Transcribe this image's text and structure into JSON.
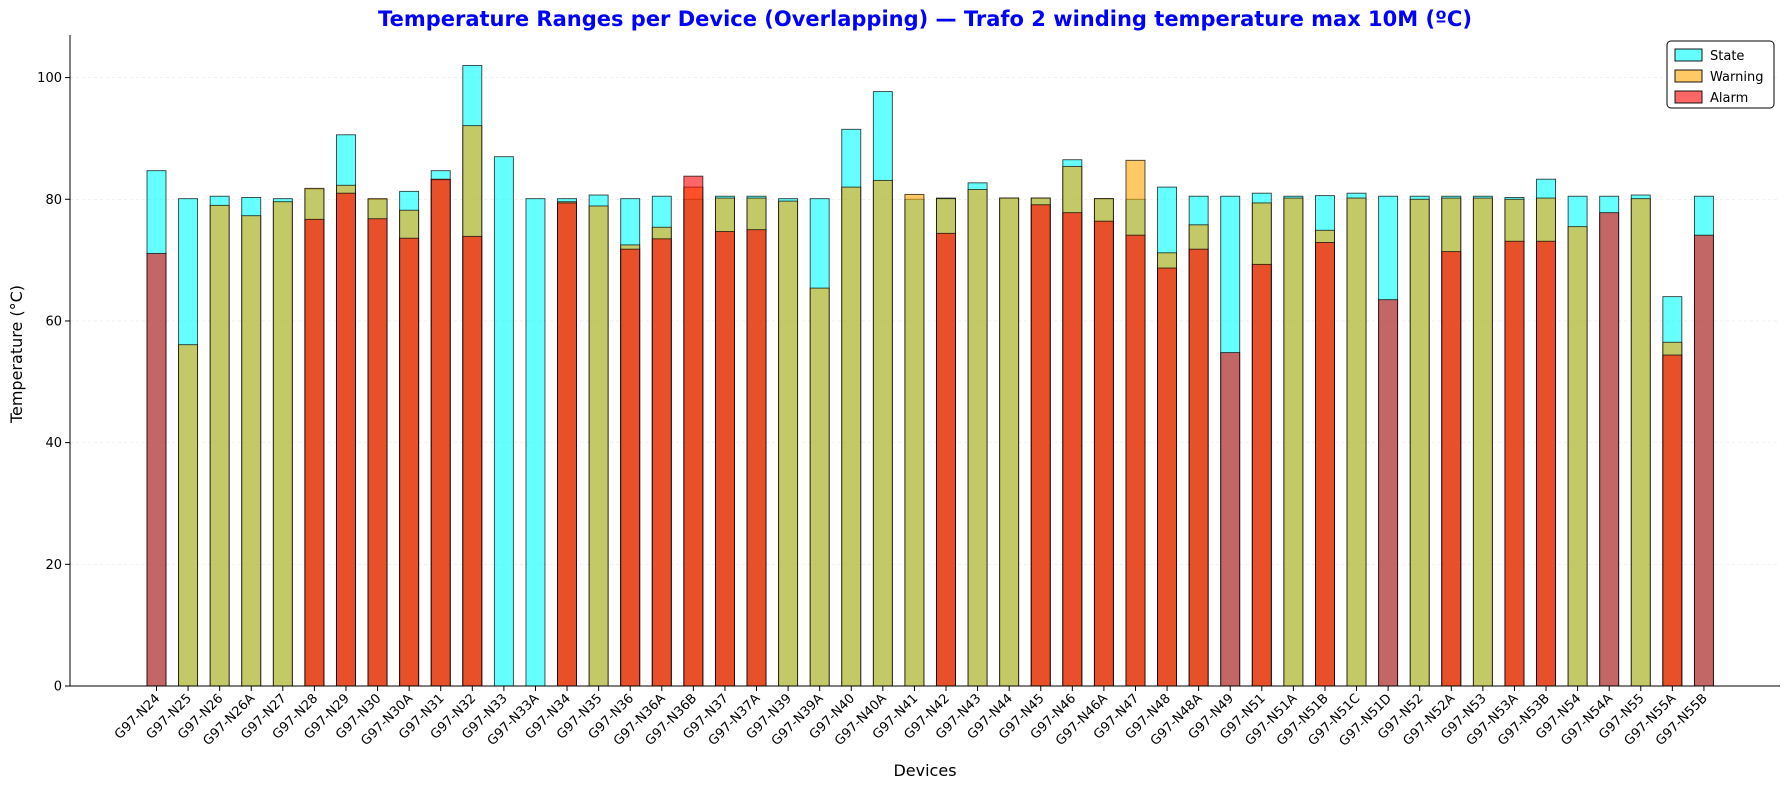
{
  "chart_data": {
    "type": "bar",
    "title": "Temperature Ranges per Device (Overlapping) — Trafo 2 winding temperature max 10M (ºC)",
    "xlabel": "Devices",
    "ylabel": "Temperature (°C)",
    "ylim": [
      0,
      107
    ],
    "yticks": [
      0,
      20,
      40,
      60,
      80,
      100
    ],
    "grid": "y-faint",
    "legend_position": "top-right",
    "categories": [
      "G97-N24",
      "G97-N25",
      "G97-N26",
      "G97-N26A",
      "G97-N27",
      "G97-N28",
      "G97-N29",
      "G97-N30",
      "G97-N30A",
      "G97-N31",
      "G97-N32",
      "G97-N33",
      "G97-N33A",
      "G97-N34",
      "G97-N35",
      "G97-N36",
      "G97-N36A",
      "G97-N36B",
      "G97-N37",
      "G97-N37A",
      "G97-N39",
      "G97-N39A",
      "G97-N40",
      "G97-N40A",
      "G97-N41",
      "G97-N42",
      "G97-N43",
      "G97-N44",
      "G97-N45",
      "G97-N46",
      "G97-N46A",
      "G97-N47",
      "G97-N48",
      "G97-N48A",
      "G97-N49",
      "G97-N51",
      "G97-N51A",
      "G97-N51B",
      "G97-N51C",
      "G97-N51D",
      "G97-N52",
      "G97-N52A",
      "G97-N53",
      "G97-N53A",
      "G97-N53B",
      "G97-N54",
      "G97-N54A",
      "G97-N55",
      "G97-N55A",
      "G97-N55B"
    ],
    "series": [
      {
        "name": "State",
        "color": "#00ffff",
        "values": [
          84.7,
          80.1,
          80.5,
          80.3,
          80.1,
          81.7,
          90.6,
          80.0,
          81.3,
          84.7,
          102.0,
          87.0,
          80.1,
          80.1,
          80.7,
          80.1,
          80.5,
          80.0,
          80.5,
          80.5,
          80.1,
          80.1,
          91.5,
          97.7,
          80.0,
          80.2,
          82.7,
          80.2,
          80.2,
          86.5,
          80.1,
          80.0,
          82.0,
          80.5,
          80.5,
          81.0,
          80.5,
          80.6,
          81.0,
          80.5,
          80.5,
          80.5,
          80.5,
          80.3,
          83.3,
          80.5,
          80.5,
          80.7,
          64.0,
          80.5
        ]
      },
      {
        "name": "Warning",
        "color": "#ffa500",
        "values": [
          0,
          56.1,
          79.0,
          77.3,
          79.6,
          81.8,
          82.3,
          80.1,
          78.2,
          83.2,
          92.1,
          0,
          0,
          79.6,
          78.9,
          72.5,
          75.4,
          82.0,
          80.2,
          80.2,
          79.7,
          65.4,
          82.0,
          83.1,
          80.8,
          80.1,
          81.6,
          80.2,
          80.2,
          85.4,
          80.1,
          86.4,
          71.2,
          75.8,
          0,
          79.4,
          80.2,
          74.9,
          80.2,
          0,
          80.0,
          80.2,
          80.2,
          80.0,
          80.2,
          75.5,
          0,
          80.1,
          56.5,
          0
        ]
      },
      {
        "name": "Alarm",
        "color": "#ff0000",
        "values": [
          71.1,
          0,
          0,
          0,
          0,
          76.7,
          81.0,
          76.8,
          73.6,
          83.3,
          73.9,
          0,
          0,
          79.4,
          0,
          71.8,
          73.5,
          83.8,
          74.7,
          75.0,
          0,
          0,
          0,
          0,
          0,
          74.4,
          0,
          0,
          79.1,
          77.8,
          76.4,
          74.1,
          68.7,
          71.8,
          54.8,
          69.3,
          0,
          72.9,
          0,
          63.5,
          0,
          71.4,
          0,
          73.1,
          73.1,
          0,
          77.8,
          0,
          54.4,
          74.1
        ]
      }
    ]
  },
  "title_color": "#0000ff"
}
